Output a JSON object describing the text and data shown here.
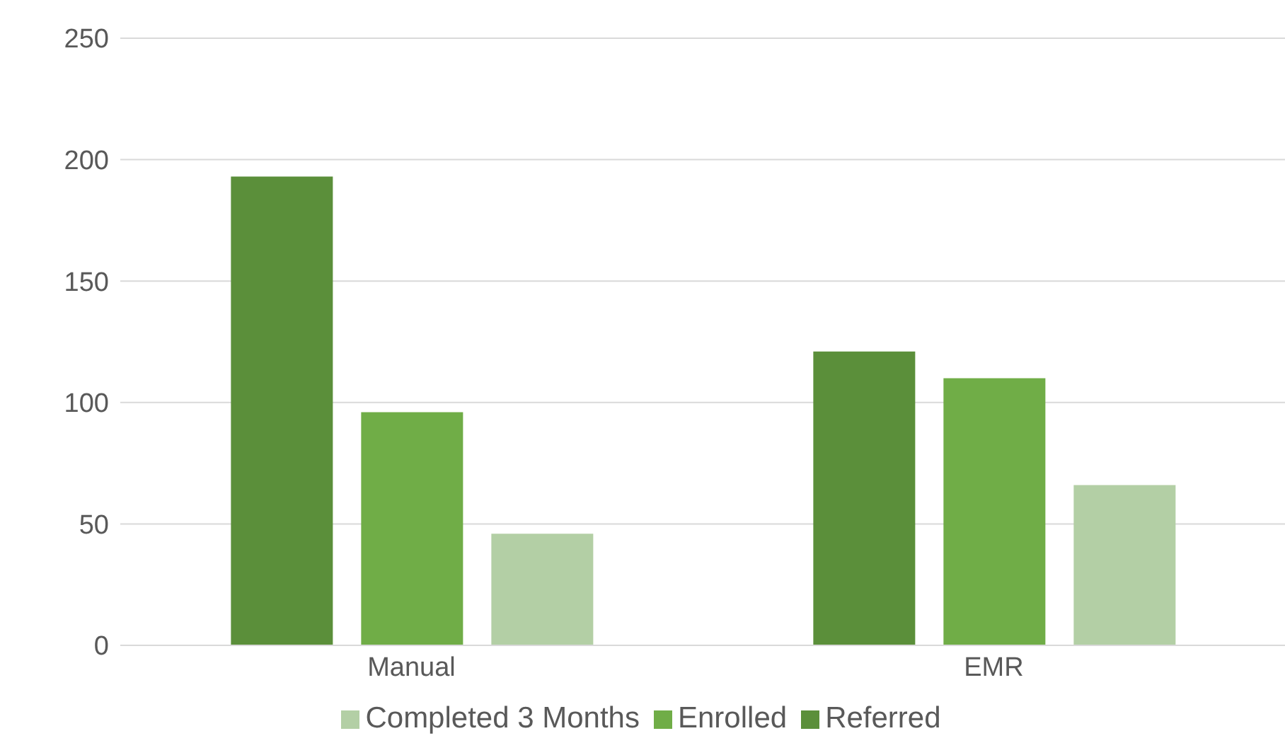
{
  "chart_data": {
    "type": "bar",
    "categories": [
      "Manual",
      "EMR"
    ],
    "series": [
      {
        "name": "Referred",
        "color": "#5b8f3a",
        "values": [
          193,
          121
        ]
      },
      {
        "name": "Enrolled",
        "color": "#70ad47",
        "values": [
          96,
          110
        ]
      },
      {
        "name": "Completed 3 Months",
        "color": "#b3cfa5",
        "values": [
          46,
          66
        ]
      }
    ],
    "ylim": [
      0,
      250
    ],
    "yticks": [
      0,
      50,
      100,
      150,
      200,
      250
    ],
    "grid": "y",
    "legend": "bottom"
  }
}
